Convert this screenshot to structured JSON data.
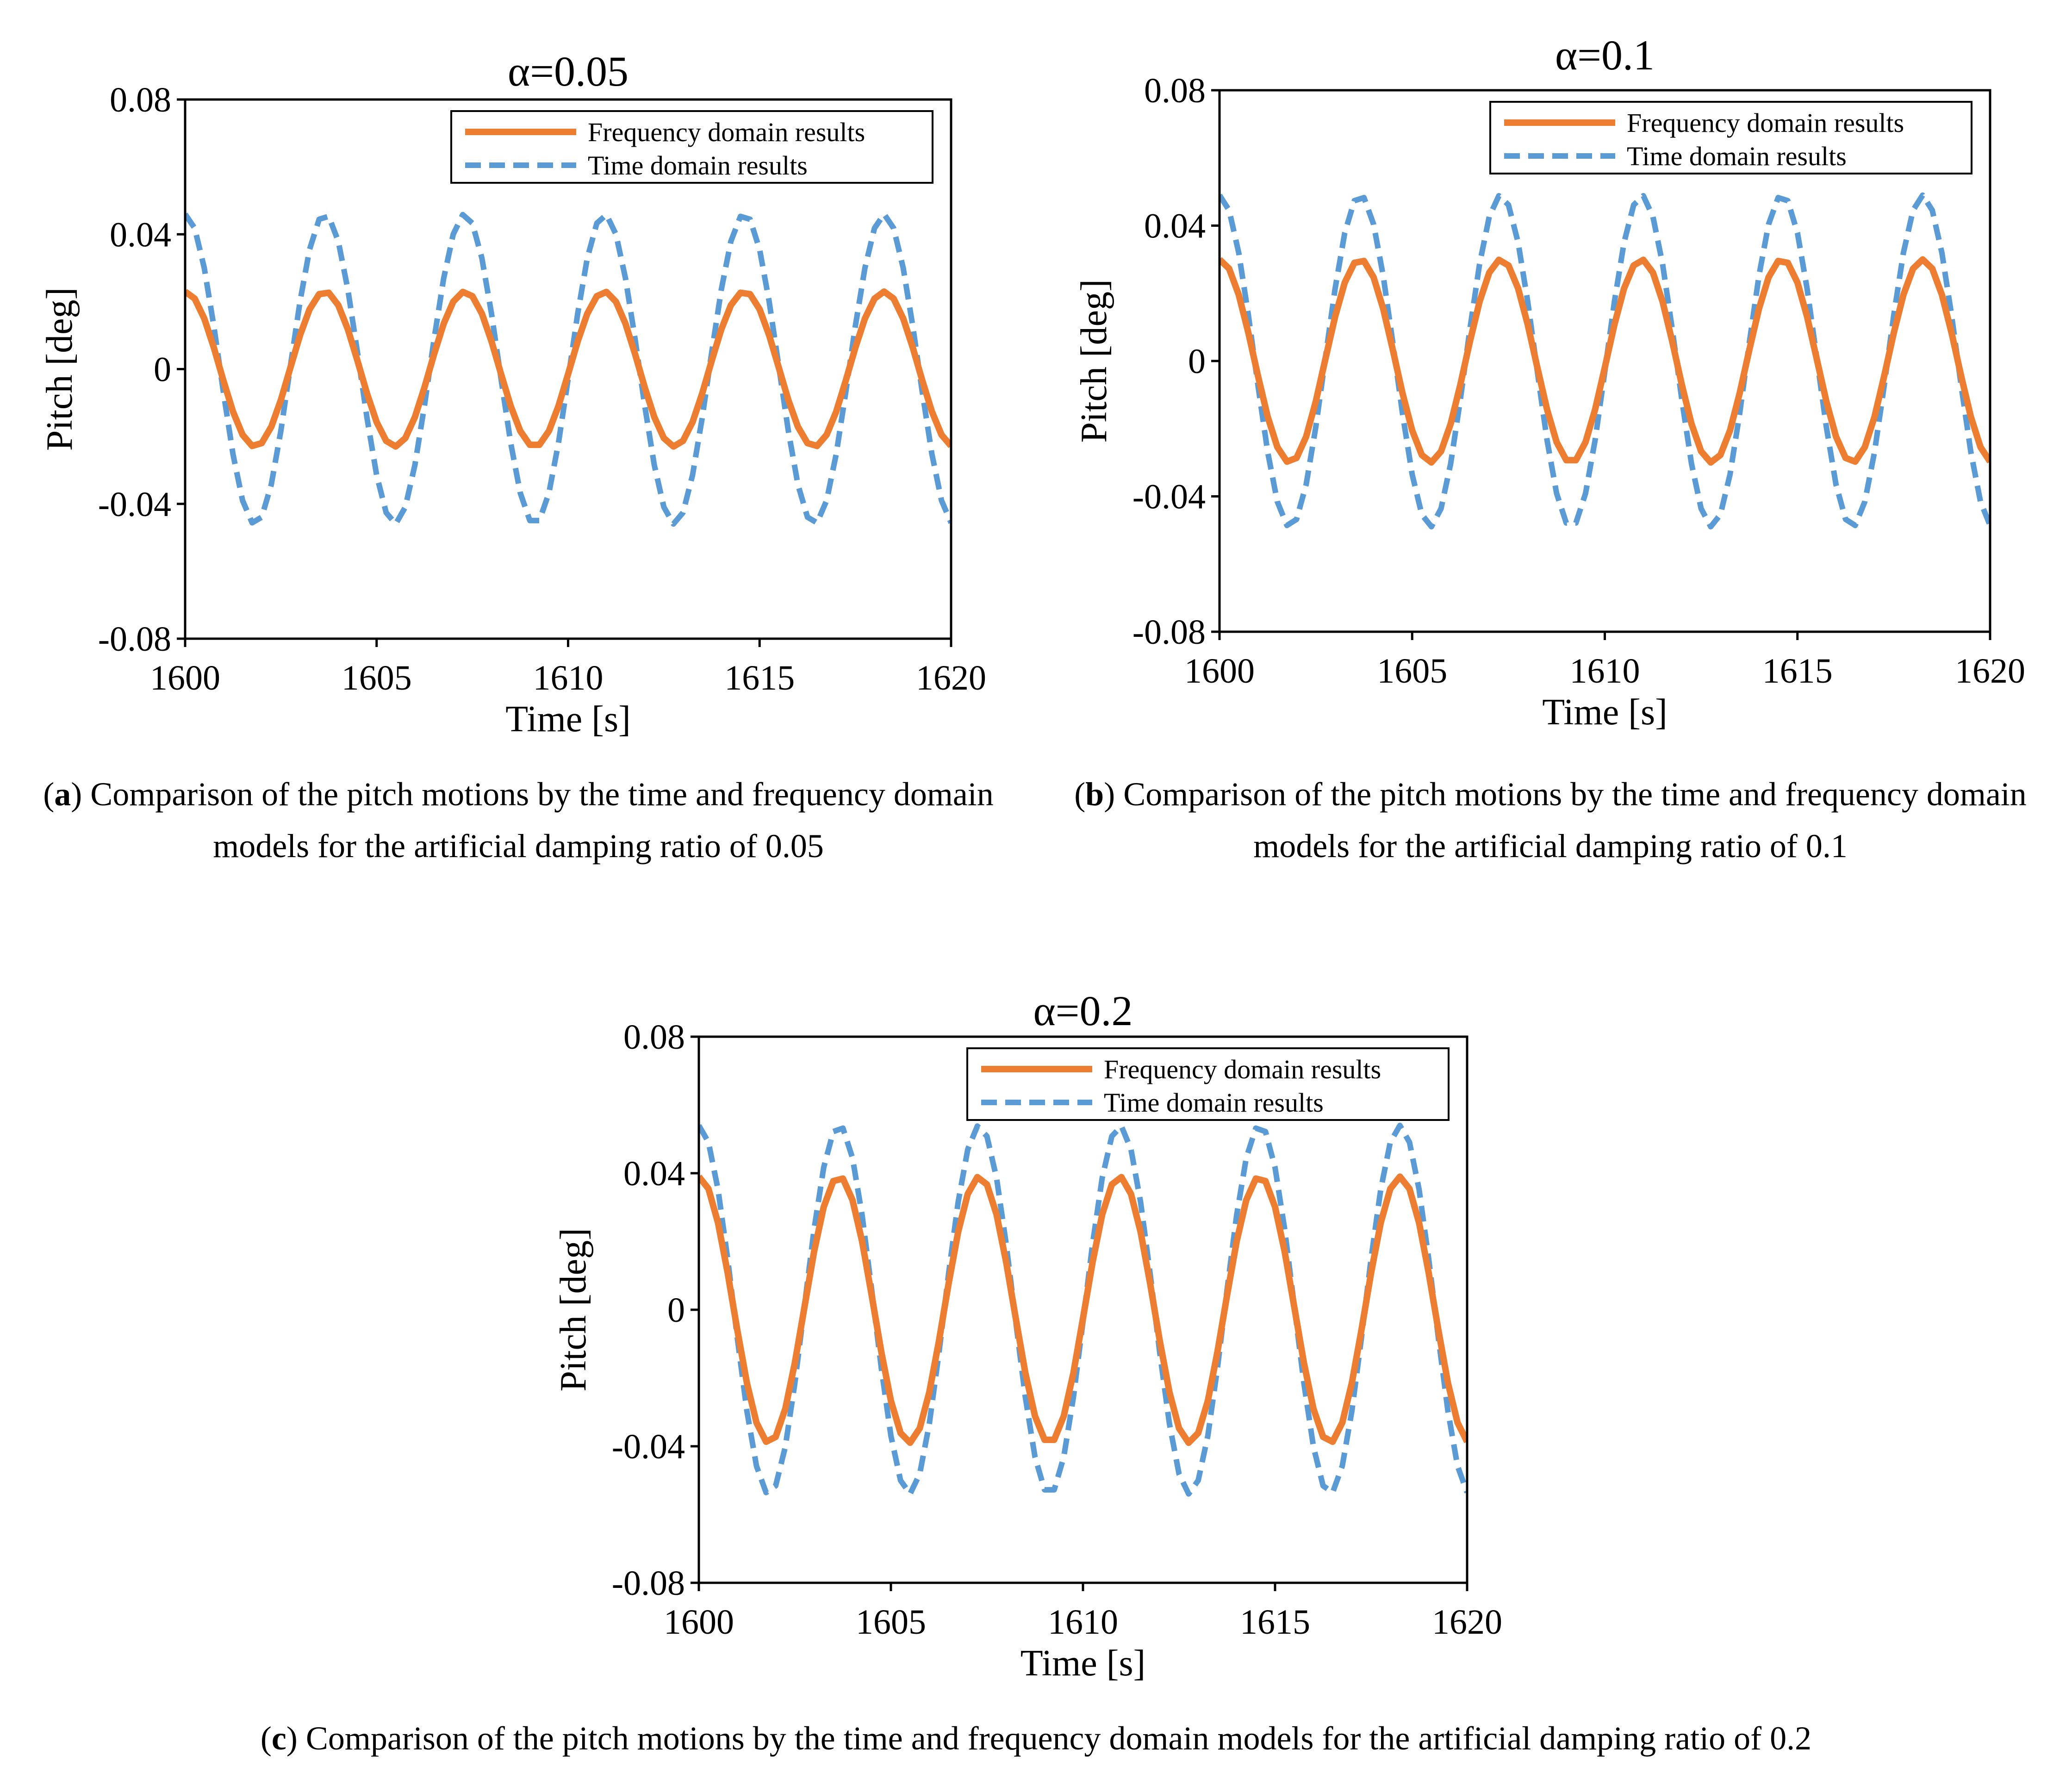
{
  "colors": {
    "frequency": "#ED7D31",
    "time": "#5B9BD5",
    "axis": "#000000"
  },
  "chart_data": [
    {
      "type": "line",
      "id": "a",
      "title": "α=0.05",
      "xlabel": "Time [s]",
      "ylabel": "Pitch [deg]",
      "xlim": [
        1600,
        1620
      ],
      "ylim": [
        -0.08,
        0.08
      ],
      "xticks": [
        1600,
        1605,
        1610,
        1615,
        1620
      ],
      "xtick_labels": [
        "1600",
        "1605",
        "1610",
        "1615",
        "1620"
      ],
      "yticks": [
        0.08,
        0.04,
        0,
        -0.04,
        -0.08
      ],
      "ytick_labels": [
        "0.08",
        "0.04",
        "0",
        "-0.04",
        "-0.08"
      ],
      "legend_position": "top-right",
      "series": [
        {
          "name": "Frequency domain results",
          "style": "solid",
          "amplitude": 0.023,
          "period": 3.65,
          "peak_time": 1603.65,
          "t_start": 1600,
          "t_end": 1620,
          "step": 0.25
        },
        {
          "name": "Time domain results",
          "style": "dashed",
          "amplitude": 0.046,
          "period": 3.65,
          "peak_time": 1603.65,
          "t_start": 1600,
          "t_end": 1620,
          "step": 0.25
        }
      ],
      "caption": {
        "label": "a",
        "text": " Comparison of the pitch motions by the time and frequency domain models for the artificial damping ratio of 0.05"
      }
    },
    {
      "type": "line",
      "id": "b",
      "title": "α=0.1",
      "xlabel": "Time [s]",
      "ylabel": "Pitch [deg]",
      "xlim": [
        1600,
        1620
      ],
      "ylim": [
        -0.08,
        0.08
      ],
      "xticks": [
        1600,
        1605,
        1610,
        1615,
        1620
      ],
      "xtick_labels": [
        "1600",
        "1605",
        "1610",
        "1615",
        "1620"
      ],
      "yticks": [
        0.08,
        0.04,
        0,
        -0.04,
        -0.08
      ],
      "ytick_labels": [
        "0.08",
        "0.04",
        "0",
        "-0.04",
        "-0.08"
      ],
      "legend_position": "top-right",
      "series": [
        {
          "name": "Frequency domain results",
          "style": "solid",
          "amplitude": 0.03,
          "period": 3.65,
          "peak_time": 1603.65,
          "t_start": 1600,
          "t_end": 1620,
          "step": 0.25
        },
        {
          "name": "Time domain results",
          "style": "dashed",
          "amplitude": 0.049,
          "period": 3.65,
          "peak_time": 1603.65,
          "t_start": 1600,
          "t_end": 1620,
          "step": 0.25
        }
      ],
      "caption": {
        "label": "b",
        "text": " Comparison of the pitch motions by the time and frequency domain models for the artificial damping ratio of 0.1"
      }
    },
    {
      "type": "line",
      "id": "c",
      "title": "α=0.2",
      "xlabel": "Time [s]",
      "ylabel": "Pitch [deg]",
      "xlim": [
        1600,
        1620
      ],
      "ylim": [
        -0.08,
        0.08
      ],
      "xticks": [
        1600,
        1605,
        1610,
        1615,
        1620
      ],
      "xtick_labels": [
        "1600",
        "1605",
        "1610",
        "1615",
        "1620"
      ],
      "yticks": [
        0.08,
        0.04,
        0,
        -0.04,
        -0.08
      ],
      "ytick_labels": [
        "0.08",
        "0.04",
        "0",
        "-0.04",
        "-0.08"
      ],
      "legend_position": "top-right",
      "series": [
        {
          "name": "Frequency domain results",
          "style": "solid",
          "amplitude": 0.039,
          "period": 3.65,
          "peak_time": 1603.65,
          "t_start": 1600,
          "t_end": 1620,
          "step": 0.25
        },
        {
          "name": "Time domain results",
          "style": "dashed",
          "amplitude": 0.054,
          "period": 3.65,
          "peak_time": 1603.65,
          "t_start": 1600,
          "t_end": 1620,
          "step": 0.25
        }
      ],
      "caption": {
        "label": "c",
        "text": " Comparison of the pitch motions by the time and frequency domain models for the artificial damping ratio of 0.2"
      }
    }
  ]
}
